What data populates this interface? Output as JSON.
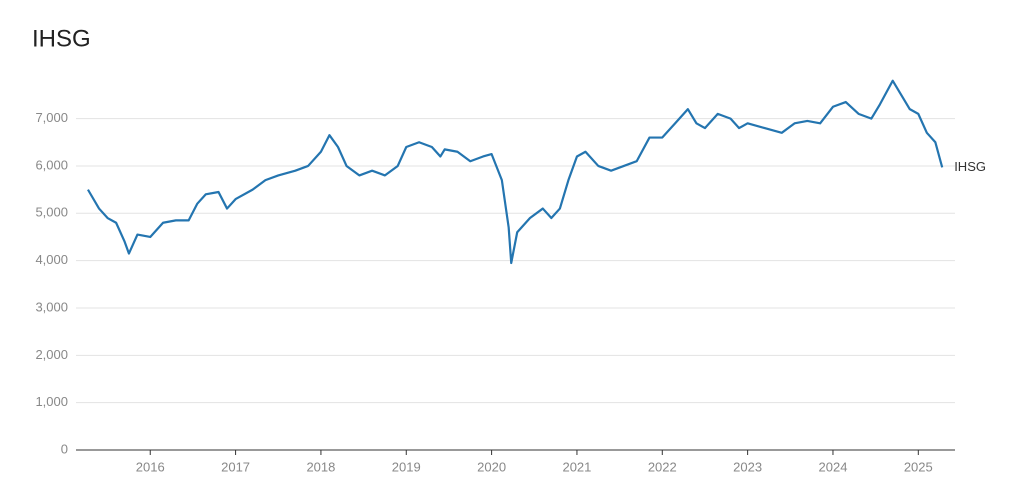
{
  "chart_data": {
    "type": "line",
    "title": "IHSG",
    "x": [
      2015.27,
      2015.4,
      2015.5,
      2015.6,
      2015.7,
      2015.75,
      2015.85,
      2016.0,
      2016.15,
      2016.3,
      2016.45,
      2016.55,
      2016.65,
      2016.8,
      2016.9,
      2017.0,
      2017.2,
      2017.35,
      2017.5,
      2017.7,
      2017.85,
      2018.0,
      2018.1,
      2018.2,
      2018.3,
      2018.45,
      2018.6,
      2018.75,
      2018.9,
      2019.0,
      2019.15,
      2019.3,
      2019.4,
      2019.45,
      2019.6,
      2019.75,
      2019.9,
      2020.0,
      2020.12,
      2020.2,
      2020.23,
      2020.3,
      2020.45,
      2020.6,
      2020.7,
      2020.8,
      2020.9,
      2021.0,
      2021.1,
      2021.25,
      2021.4,
      2021.55,
      2021.7,
      2021.85,
      2022.0,
      2022.15,
      2022.3,
      2022.4,
      2022.5,
      2022.65,
      2022.8,
      2022.9,
      2023.0,
      2023.2,
      2023.4,
      2023.55,
      2023.7,
      2023.85,
      2024.0,
      2024.15,
      2024.3,
      2024.45,
      2024.55,
      2024.7,
      2024.8,
      2024.9,
      2025.0,
      2025.1,
      2025.2,
      2025.28
    ],
    "series": [
      {
        "name": "IHSG",
        "color": "#2475b0",
        "values": [
          5500,
          5100,
          4900,
          4800,
          4400,
          4150,
          4550,
          4500,
          4800,
          4850,
          4850,
          5200,
          5400,
          5450,
          5100,
          5300,
          5500,
          5700,
          5800,
          5900,
          6000,
          6300,
          6650,
          6400,
          6000,
          5800,
          5900,
          5800,
          6000,
          6400,
          6500,
          6400,
          6200,
          6350,
          6300,
          6100,
          6200,
          6250,
          5700,
          4700,
          3950,
          4600,
          4900,
          5100,
          4900,
          5100,
          5700,
          6200,
          6300,
          6000,
          5900,
          6000,
          6100,
          6600,
          6600,
          6900,
          7200,
          6900,
          6800,
          7100,
          7000,
          6800,
          6900,
          6800,
          6700,
          6900,
          6950,
          6900,
          7250,
          7350,
          7100,
          7000,
          7300,
          7800,
          7500,
          7200,
          7100,
          6700,
          6500,
          5970
        ]
      }
    ],
    "xlim": [
      2015.13,
      2025.43
    ],
    "xticks": [
      2016,
      2017,
      2018,
      2019,
      2020,
      2021,
      2022,
      2023,
      2024,
      2025
    ],
    "ylim": [
      0,
      7900
    ],
    "yticks": [
      0,
      {
        "value": 1000,
        "label": "1,000"
      },
      {
        "value": 2000,
        "label": "2,000"
      },
      {
        "value": 3000,
        "label": "3,000"
      },
      {
        "value": 4000,
        "label": "4,000"
      },
      {
        "value": 5000,
        "label": "5,000"
      },
      {
        "value": 6000,
        "label": "6,000"
      },
      {
        "value": 7000,
        "label": "7,000"
      }
    ],
    "grid": true
  }
}
